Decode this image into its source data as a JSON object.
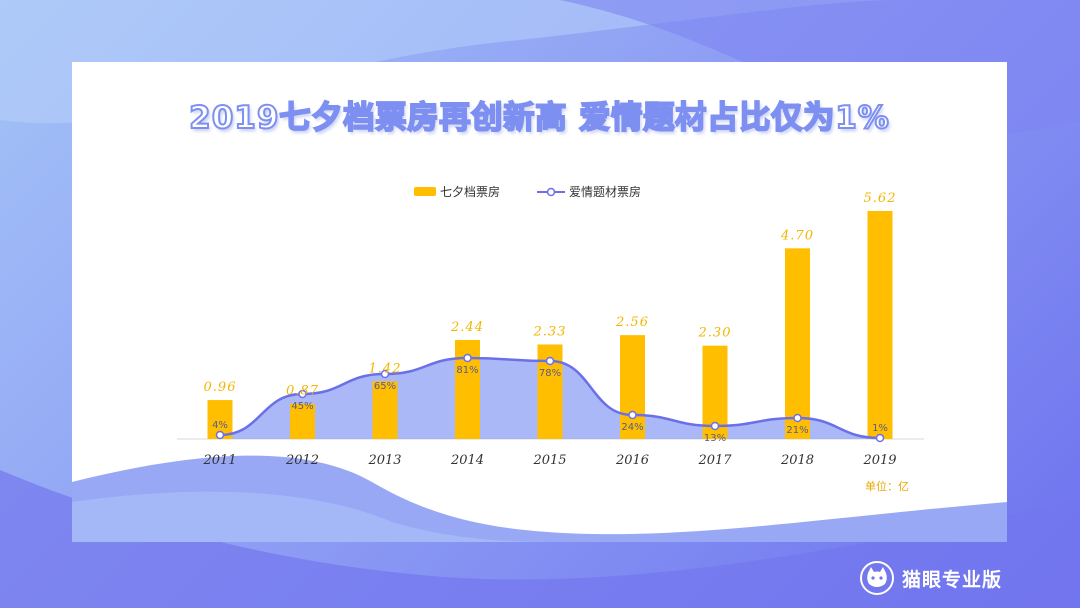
{
  "title": "2019七夕档票房再创新高 爱情题材占比仅为1%",
  "unit_label": "单位：亿",
  "brand": {
    "name": "猫眼专业版",
    "icon": "cat-logo-icon"
  },
  "colors": {
    "bar": "#ffbe00",
    "line": "#6b6fe8",
    "area": "#8fa0f4"
  },
  "chart_data": {
    "type": "bar",
    "categories": [
      "2011",
      "2012",
      "2013",
      "2014",
      "2015",
      "2016",
      "2017",
      "2018",
      "2019"
    ],
    "series": [
      {
        "name": "七夕档票房",
        "type": "bar",
        "values": [
          0.96,
          0.87,
          1.42,
          2.44,
          2.33,
          2.56,
          2.3,
          4.7,
          5.62
        ],
        "labels": [
          "0.96",
          "0.87",
          "1.42",
          "2.44",
          "2.33",
          "2.56",
          "2.30",
          "4.70",
          "5.62"
        ]
      },
      {
        "name": "爱情题材票房",
        "type": "line",
        "values": [
          4,
          45,
          65,
          81,
          78,
          24,
          13,
          21,
          1
        ],
        "labels": [
          "4%",
          "45%",
          "65%",
          "81%",
          "78%",
          "24%",
          "13%",
          "21%",
          "1%"
        ]
      }
    ],
    "legend_position": "top-center",
    "grid": false
  }
}
